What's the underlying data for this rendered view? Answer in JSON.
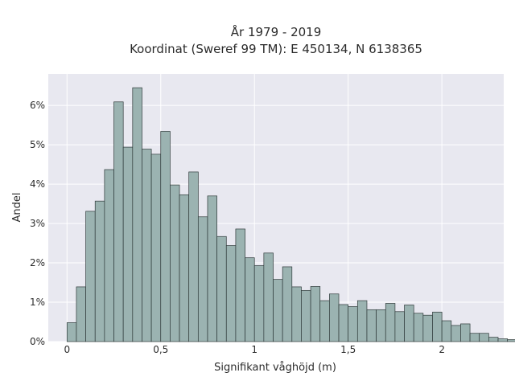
{
  "chart_data": {
    "type": "bar",
    "title": "År 1979 - 2019",
    "subtitle": "Koordinat (Sweref 99 TM): E 450134, N 6138365",
    "xlabel": "Signifikant våghöjd (m)",
    "ylabel": "Andel",
    "xlim": [
      -0.1,
      2.33
    ],
    "ylim": [
      0,
      6.8
    ],
    "xticks": [
      {
        "value": 0,
        "label": "0"
      },
      {
        "value": 0.5,
        "label": "0,5"
      },
      {
        "value": 1,
        "label": "1"
      },
      {
        "value": 1.5,
        "label": "1,5"
      },
      {
        "value": 2,
        "label": "2"
      }
    ],
    "yticks": [
      {
        "value": 0,
        "label": "0%"
      },
      {
        "value": 1,
        "label": "1%"
      },
      {
        "value": 2,
        "label": "2%"
      },
      {
        "value": 3,
        "label": "3%"
      },
      {
        "value": 4,
        "label": "4%"
      },
      {
        "value": 5,
        "label": "5%"
      },
      {
        "value": 6,
        "label": "6%"
      }
    ],
    "bin_start": 0.025,
    "bin_width": 0.05,
    "values": [
      0.48,
      1.39,
      3.31,
      3.57,
      4.37,
      6.09,
      4.94,
      6.45,
      4.89,
      4.76,
      5.34,
      3.98,
      3.73,
      4.31,
      3.17,
      3.7,
      2.67,
      2.44,
      2.86,
      2.13,
      1.93,
      2.25,
      1.58,
      1.9,
      1.39,
      1.3,
      1.4,
      1.04,
      1.21,
      0.94,
      0.89,
      1.04,
      0.81,
      0.81,
      0.97,
      0.76,
      0.93,
      0.72,
      0.67,
      0.75,
      0.53,
      0.41,
      0.45,
      0.21,
      0.21,
      0.11,
      0.07,
      0.05,
      0.02,
      0.01
    ],
    "bar_color": "#9bb3b1",
    "bar_edge": "#2f3a3a",
    "plot_background": "#e8e8f0",
    "grid": true,
    "legend": "none"
  }
}
